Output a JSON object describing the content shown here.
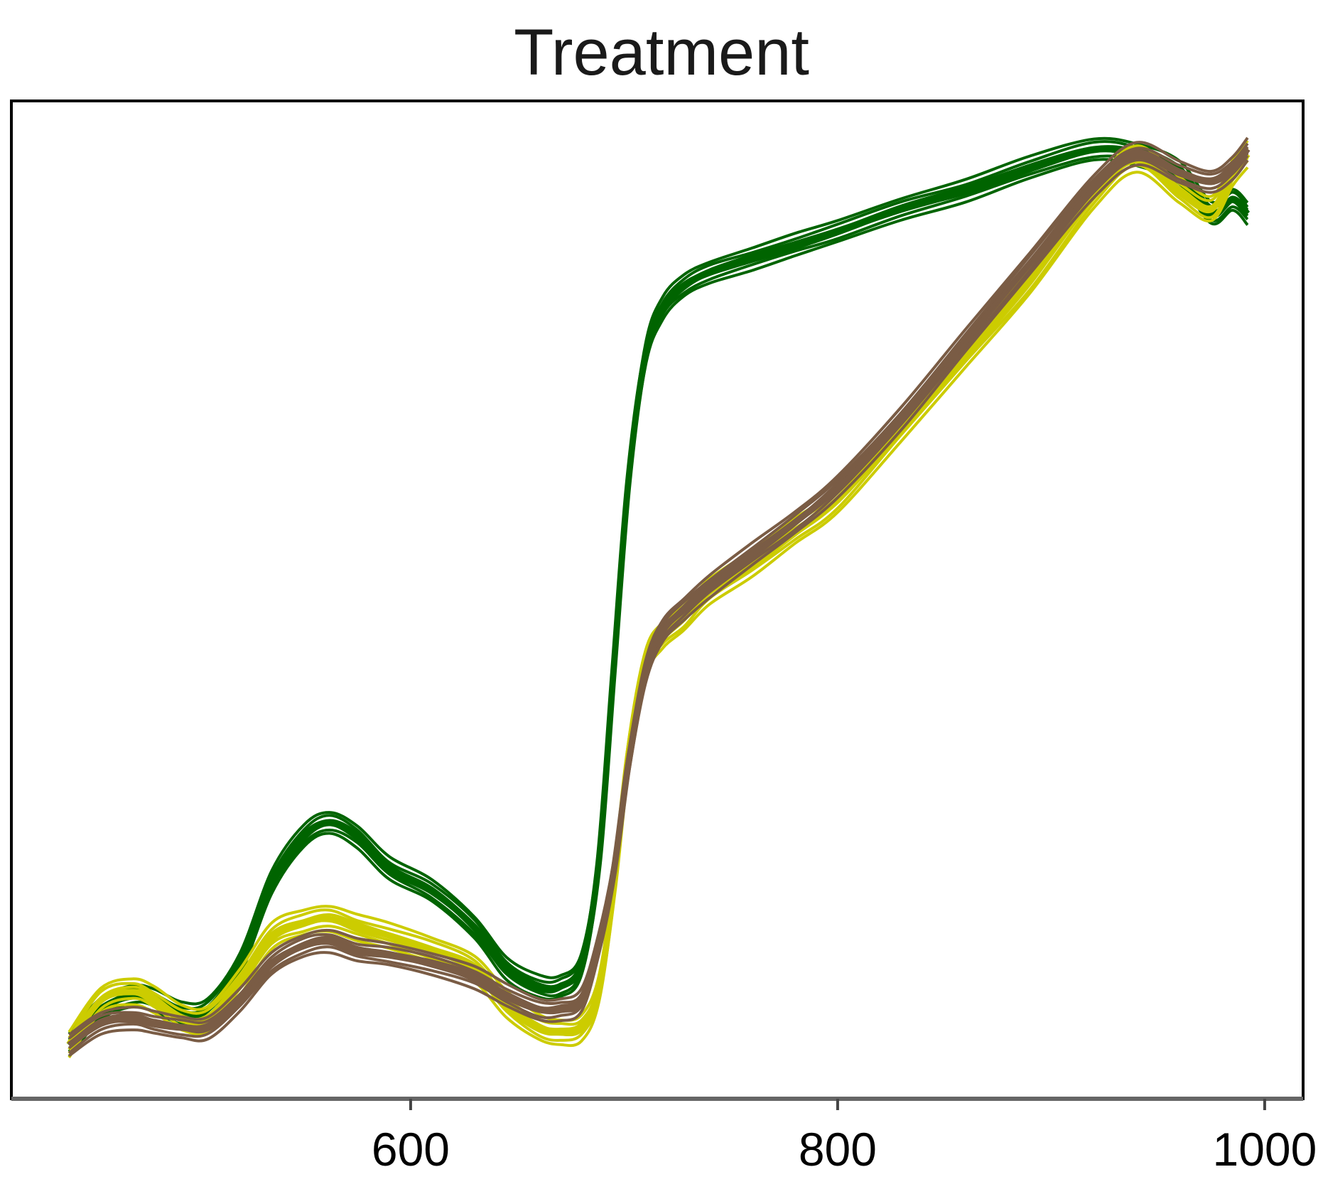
{
  "chart_data": {
    "type": "line",
    "title": "Treatment",
    "xlabel": "",
    "ylabel": "",
    "xlim": [
      413,
      1018
    ],
    "ylim": [
      0,
      1
    ],
    "x_ticks": [
      {
        "value": 600,
        "label": "600"
      },
      {
        "value": 800,
        "label": "800"
      },
      {
        "value": 1000,
        "label": "1000"
      }
    ],
    "y_ticks_shown": false,
    "grid": false,
    "legend": "none",
    "x": [
      440,
      455,
      470,
      480,
      493,
      505,
      520,
      535,
      550,
      562,
      575,
      590,
      610,
      630,
      645,
      660,
      670,
      680,
      688,
      695,
      702,
      710,
      718,
      728,
      740,
      760,
      780,
      800,
      830,
      860,
      890,
      920,
      940,
      960,
      975,
      985,
      992
    ],
    "series": [
      {
        "name": "",
        "color": "#006400",
        "band_width": 0.012,
        "values": [
          0.01,
          0.05,
          0.065,
          0.06,
          0.045,
          0.05,
          0.1,
          0.19,
          0.24,
          0.255,
          0.24,
          0.205,
          0.18,
          0.14,
          0.095,
          0.075,
          0.075,
          0.1,
          0.21,
          0.42,
          0.63,
          0.77,
          0.82,
          0.845,
          0.86,
          0.875,
          0.89,
          0.905,
          0.93,
          0.95,
          0.975,
          0.995,
          0.99,
          0.97,
          0.925,
          0.94,
          0.925
        ]
      },
      {
        "name": "",
        "color": "#cccc00",
        "band_width": 0.014,
        "values": [
          0.01,
          0.06,
          0.07,
          0.06,
          0.04,
          0.04,
          0.08,
          0.13,
          0.145,
          0.15,
          0.14,
          0.13,
          0.115,
          0.095,
          0.055,
          0.03,
          0.025,
          0.03,
          0.07,
          0.18,
          0.33,
          0.43,
          0.46,
          0.48,
          0.51,
          0.54,
          0.575,
          0.61,
          0.69,
          0.77,
          0.85,
          0.945,
          0.985,
          0.95,
          0.93,
          0.97,
          0.99
        ]
      },
      {
        "name": "",
        "color": "#7a5c45",
        "band_width": 0.012,
        "values": [
          0.01,
          0.035,
          0.04,
          0.035,
          0.03,
          0.03,
          0.06,
          0.1,
          0.12,
          0.125,
          0.115,
          0.11,
          0.1,
          0.085,
          0.065,
          0.05,
          0.05,
          0.06,
          0.12,
          0.2,
          0.32,
          0.42,
          0.465,
          0.49,
          0.515,
          0.55,
          0.585,
          0.625,
          0.7,
          0.785,
          0.87,
          0.955,
          0.99,
          0.97,
          0.96,
          0.975,
          0.995
        ]
      }
    ]
  }
}
